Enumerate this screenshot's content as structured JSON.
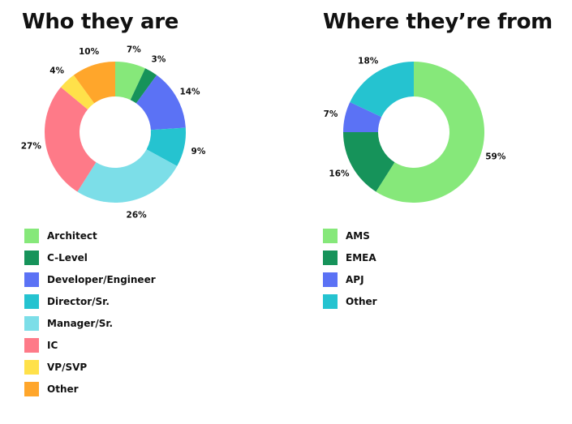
{
  "chart_data": [
    {
      "type": "pie",
      "title": "Who they are",
      "legend": "bottom",
      "slices": [
        {
          "label": "Architect",
          "value": 7,
          "value_label": "7%",
          "color": "#86E87A"
        },
        {
          "label": "C-Level",
          "value": 3,
          "value_label": "3%",
          "color": "#16935A"
        },
        {
          "label": "Developer/Engineer",
          "value": 14,
          "value_label": "14%",
          "color": "#5B72F5"
        },
        {
          "label": "Director/Sr.",
          "value": 9,
          "value_label": "9%",
          "color": "#25C3D0"
        },
        {
          "label": "Manager/Sr.",
          "value": 26,
          "value_label": "26%",
          "color": "#7CDEE8"
        },
        {
          "label": "IC",
          "value": 27,
          "value_label": "27%",
          "color": "#FE7A88"
        },
        {
          "label": "VP/SVP",
          "value": 4,
          "value_label": "4%",
          "color": "#FFE14A"
        },
        {
          "label": "Other",
          "value": 10,
          "value_label": "10%",
          "color": "#FFA62B"
        }
      ]
    },
    {
      "type": "pie",
      "title": "Where they’re from",
      "legend": "bottom",
      "slices": [
        {
          "label": "AMS",
          "value": 59,
          "value_label": "59%",
          "color": "#86E87A"
        },
        {
          "label": "EMEA",
          "value": 16,
          "value_label": "16%",
          "color": "#16935A"
        },
        {
          "label": "APJ",
          "value": 7,
          "value_label": "7%",
          "color": "#5B72F5"
        },
        {
          "label": "Other",
          "value": 18,
          "value_label": "18%",
          "color": "#25C3D0"
        }
      ]
    }
  ]
}
